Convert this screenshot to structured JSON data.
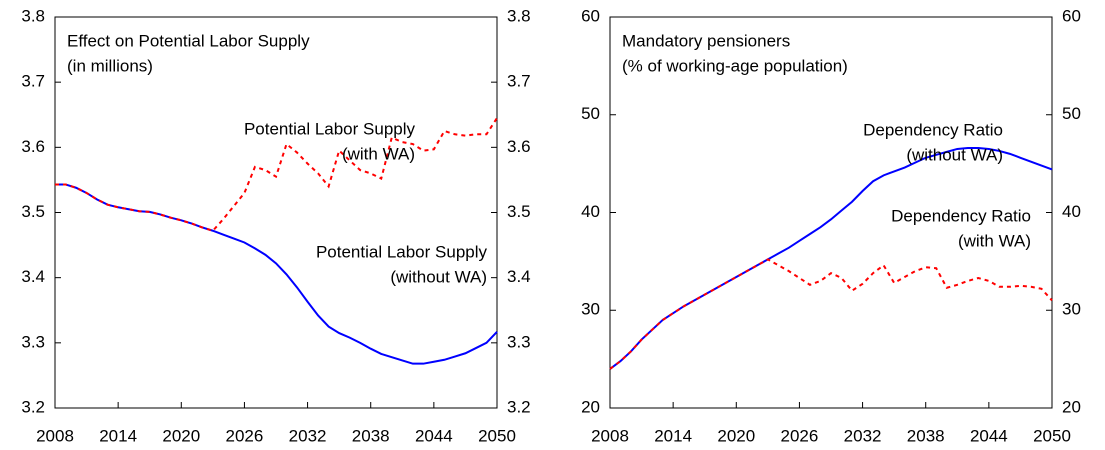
{
  "chart_data": [
    {
      "type": "line",
      "title": "Effect on Potential Labor Supply",
      "subtitle": "(in millions)",
      "x": [
        2008,
        2009,
        2010,
        2011,
        2012,
        2013,
        2014,
        2015,
        2016,
        2017,
        2018,
        2019,
        2020,
        2021,
        2022,
        2023,
        2024,
        2025,
        2026,
        2027,
        2028,
        2029,
        2030,
        2031,
        2032,
        2033,
        2034,
        2035,
        2036,
        2037,
        2038,
        2039,
        2040,
        2041,
        2042,
        2043,
        2044,
        2045,
        2046,
        2047,
        2048,
        2049,
        2050
      ],
      "xlim": [
        2008,
        2050
      ],
      "xticks": [
        2008,
        2014,
        2020,
        2026,
        2032,
        2038,
        2044,
        2050
      ],
      "ylim": [
        3.2,
        3.8
      ],
      "yticks": [
        3.2,
        3.3,
        3.4,
        3.5,
        3.6,
        3.7,
        3.8
      ],
      "y2lim": [
        3.2,
        3.8
      ],
      "y2ticks": [
        3.2,
        3.3,
        3.4,
        3.5,
        3.6,
        3.7,
        3.8
      ],
      "series": [
        {
          "color": "#0000ff",
          "dash": false,
          "values": [
            3.543,
            3.543,
            3.538,
            3.53,
            3.52,
            3.512,
            3.508,
            3.505,
            3.502,
            3.501,
            3.497,
            3.492,
            3.488,
            3.483,
            3.477,
            3.472,
            3.466,
            3.46,
            3.454,
            3.445,
            3.435,
            3.422,
            3.405,
            3.385,
            3.363,
            3.342,
            3.325,
            3.315,
            3.308,
            3.3,
            3.291,
            3.283,
            3.278,
            3.273,
            3.268,
            3.268,
            3.271,
            3.274,
            3.279,
            3.284,
            3.292,
            3.3,
            3.317
          ]
        },
        {
          "color": "#ff0000",
          "dash": true,
          "values": [
            3.543,
            3.543,
            3.538,
            3.53,
            3.52,
            3.512,
            3.508,
            3.505,
            3.502,
            3.501,
            3.497,
            3.492,
            3.488,
            3.483,
            3.477,
            3.472,
            3.49,
            3.51,
            3.53,
            3.57,
            3.565,
            3.555,
            3.605,
            3.592,
            3.575,
            3.56,
            3.54,
            3.595,
            3.58,
            3.565,
            3.56,
            3.552,
            3.615,
            3.608,
            3.605,
            3.595,
            3.597,
            3.625,
            3.62,
            3.618,
            3.62,
            3.62,
            3.645
          ]
        }
      ],
      "annotations": [
        {
          "lines": [
            "Potential Labor Supply",
            "(with WA)"
          ]
        },
        {
          "lines": [
            "Potential Labor Supply",
            "(without WA)"
          ]
        }
      ]
    },
    {
      "type": "line",
      "title": "Mandatory pensioners",
      "subtitle": "(% of working-age population)",
      "x": [
        2008,
        2009,
        2010,
        2011,
        2012,
        2013,
        2014,
        2015,
        2016,
        2017,
        2018,
        2019,
        2020,
        2021,
        2022,
        2023,
        2024,
        2025,
        2026,
        2027,
        2028,
        2029,
        2030,
        2031,
        2032,
        2033,
        2034,
        2035,
        2036,
        2037,
        2038,
        2039,
        2040,
        2041,
        2042,
        2043,
        2044,
        2045,
        2046,
        2047,
        2048,
        2049,
        2050
      ],
      "xlim": [
        2008,
        2050
      ],
      "xticks": [
        2008,
        2014,
        2020,
        2026,
        2032,
        2038,
        2044,
        2050
      ],
      "ylim": [
        20,
        60
      ],
      "yticks": [
        20,
        30,
        40,
        50,
        60
      ],
      "y2lim": [
        20,
        60
      ],
      "y2ticks": [
        20,
        30,
        40,
        50,
        60
      ],
      "series": [
        {
          "color": "#0000ff",
          "dash": false,
          "values": [
            24,
            24.8,
            25.8,
            27,
            28,
            29,
            29.7,
            30.4,
            31,
            31.6,
            32.2,
            32.8,
            33.4,
            34,
            34.6,
            35.2,
            35.8,
            36.4,
            37.1,
            37.8,
            38.5,
            39.3,
            40.2,
            41.1,
            42.2,
            43.2,
            43.8,
            44.2,
            44.6,
            45.1,
            45.6,
            45.9,
            46.2,
            46.5,
            46.6,
            46.6,
            46.5,
            46.3,
            46,
            45.6,
            45.2,
            44.8,
            44.4
          ]
        },
        {
          "color": "#ff0000",
          "dash": true,
          "values": [
            24,
            24.8,
            25.8,
            27,
            28,
            29,
            29.7,
            30.4,
            31,
            31.6,
            32.2,
            32.8,
            33.4,
            34,
            34.6,
            35.2,
            34.6,
            34,
            33.3,
            32.6,
            33,
            33.8,
            33.3,
            32,
            32.7,
            33.8,
            34.6,
            32.8,
            33.4,
            34,
            34.4,
            34.3,
            32.3,
            32.6,
            33,
            33.3,
            33,
            32.4,
            32.4,
            32.5,
            32.4,
            32.2,
            31
          ]
        }
      ],
      "annotations": [
        {
          "lines": [
            "Dependency Ratio",
            "(without WA)"
          ]
        },
        {
          "lines": [
            "Dependency Ratio",
            "(with WA)"
          ]
        }
      ]
    }
  ]
}
